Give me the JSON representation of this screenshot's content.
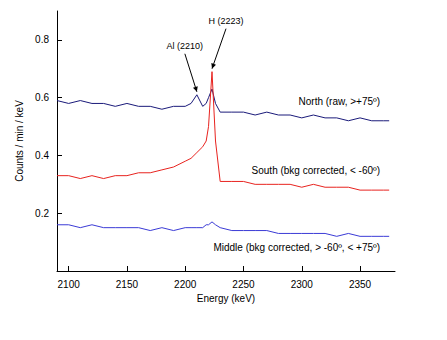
{
  "chart_data": {
    "type": "line",
    "x_label": "Energy (keV)",
    "y_label": "Counts / min / keV",
    "x": [
      2090,
      2100,
      2110,
      2120,
      2130,
      2140,
      2150,
      2160,
      2170,
      2180,
      2190,
      2200,
      2205,
      2210,
      2215,
      2218,
      2220,
      2223,
      2226,
      2230,
      2240,
      2250,
      2260,
      2270,
      2280,
      2290,
      2300,
      2310,
      2320,
      2330,
      2340,
      2350,
      2360,
      2370,
      2375
    ],
    "series": [
      {
        "name": "North (raw, >+75º)",
        "color": "#1a1a7a",
        "values": [
          0.59,
          0.58,
          0.59,
          0.58,
          0.58,
          0.57,
          0.58,
          0.57,
          0.57,
          0.56,
          0.57,
          0.57,
          0.58,
          0.61,
          0.57,
          0.58,
          0.6,
          0.63,
          0.58,
          0.55,
          0.55,
          0.55,
          0.54,
          0.55,
          0.54,
          0.54,
          0.53,
          0.54,
          0.53,
          0.53,
          0.52,
          0.53,
          0.52,
          0.52,
          0.52
        ]
      },
      {
        "name": "South (bkg corrected, < -60º)",
        "color": "#e8231f",
        "values": [
          0.33,
          0.33,
          0.32,
          0.33,
          0.32,
          0.33,
          0.33,
          0.34,
          0.34,
          0.35,
          0.36,
          0.38,
          0.39,
          0.41,
          0.43,
          0.45,
          0.5,
          0.69,
          0.45,
          0.31,
          0.31,
          0.31,
          0.3,
          0.3,
          0.3,
          0.3,
          0.29,
          0.3,
          0.29,
          0.29,
          0.29,
          0.28,
          0.28,
          0.28,
          0.28
        ]
      },
      {
        "name": "Middle (bkg corrected, > -60º, < +75º)",
        "color": "#3b3bd6",
        "values": [
          0.16,
          0.16,
          0.15,
          0.16,
          0.15,
          0.15,
          0.15,
          0.15,
          0.14,
          0.15,
          0.14,
          0.15,
          0.15,
          0.15,
          0.15,
          0.16,
          0.16,
          0.17,
          0.16,
          0.15,
          0.14,
          0.14,
          0.14,
          0.14,
          0.13,
          0.13,
          0.13,
          0.13,
          0.13,
          0.12,
          0.13,
          0.12,
          0.12,
          0.12,
          0.12
        ]
      }
    ],
    "annotations": [
      {
        "text": "Al (2210)",
        "x": 2210,
        "y": 0.61
      },
      {
        "text": "H (2223)",
        "x": 2223,
        "y": 0.69
      }
    ],
    "xlim": [
      2090,
      2380
    ],
    "xticks": [
      2100,
      2150,
      2200,
      2250,
      2300,
      2350
    ],
    "ylim": [
      0,
      0.9
    ],
    "yticks": [
      0.2,
      0.4,
      0.6,
      0.8
    ],
    "grid": false
  }
}
